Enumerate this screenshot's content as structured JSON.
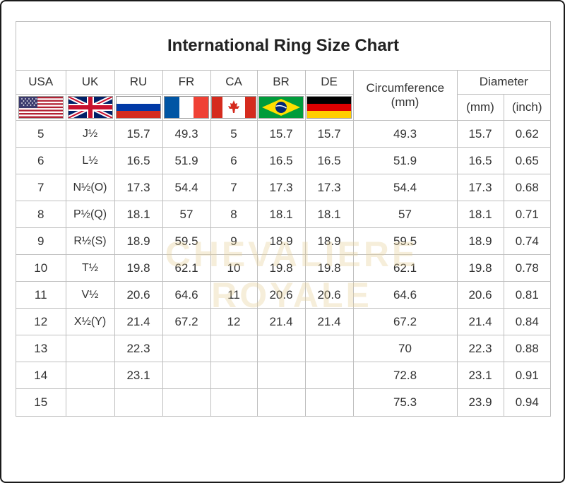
{
  "title": "International Ring Size Chart",
  "columns": {
    "usa": "USA",
    "uk": "UK",
    "ru": "RU",
    "fr": "FR",
    "ca": "CA",
    "br": "BR",
    "de": "DE",
    "circumference": "Circumference (mm)",
    "diameter": "Diameter",
    "diameter_mm": "(mm)",
    "diameter_inch": "(inch)"
  },
  "flags": [
    "us-flag-icon",
    "uk-flag-icon",
    "russia-flag-icon",
    "france-flag-icon",
    "canada-flag-icon",
    "brazil-flag-icon",
    "germany-flag-icon"
  ],
  "rows": [
    {
      "usa": "5",
      "uk": "J½",
      "ru": "15.7",
      "fr": "49.3",
      "ca": "5",
      "br": "15.7",
      "de": "15.7",
      "circ": "49.3",
      "dmm": "15.7",
      "din": "0.62"
    },
    {
      "usa": "6",
      "uk": "L½",
      "ru": "16.5",
      "fr": "51.9",
      "ca": "6",
      "br": "16.5",
      "de": "16.5",
      "circ": "51.9",
      "dmm": "16.5",
      "din": "0.65"
    },
    {
      "usa": "7",
      "uk": "N½(O)",
      "ru": "17.3",
      "fr": "54.4",
      "ca": "7",
      "br": "17.3",
      "de": "17.3",
      "circ": "54.4",
      "dmm": "17.3",
      "din": "0.68"
    },
    {
      "usa": "8",
      "uk": "P½(Q)",
      "ru": "18.1",
      "fr": "57",
      "ca": "8",
      "br": "18.1",
      "de": "18.1",
      "circ": "57",
      "dmm": "18.1",
      "din": "0.71"
    },
    {
      "usa": "9",
      "uk": "R½(S)",
      "ru": "18.9",
      "fr": "59.5",
      "ca": "9",
      "br": "18.9",
      "de": "18.9",
      "circ": "59.5",
      "dmm": "18.9",
      "din": "0.74"
    },
    {
      "usa": "10",
      "uk": "T½",
      "ru": "19.8",
      "fr": "62.1",
      "ca": "10",
      "br": "19.8",
      "de": "19.8",
      "circ": "62.1",
      "dmm": "19.8",
      "din": "0.78"
    },
    {
      "usa": "11",
      "uk": "V½",
      "ru": "20.6",
      "fr": "64.6",
      "ca": "11",
      "br": "20.6",
      "de": "20.6",
      "circ": "64.6",
      "dmm": "20.6",
      "din": "0.81"
    },
    {
      "usa": "12",
      "uk": "X½(Y)",
      "ru": "21.4",
      "fr": "67.2",
      "ca": "12",
      "br": "21.4",
      "de": "21.4",
      "circ": "67.2",
      "dmm": "21.4",
      "din": "0.84"
    },
    {
      "usa": "13",
      "uk": "",
      "ru": "22.3",
      "fr": "",
      "ca": "",
      "br": "",
      "de": "",
      "circ": "70",
      "dmm": "22.3",
      "din": "0.88"
    },
    {
      "usa": "14",
      "uk": "",
      "ru": "23.1",
      "fr": "",
      "ca": "",
      "br": "",
      "de": "",
      "circ": "72.8",
      "dmm": "23.1",
      "din": "0.91"
    },
    {
      "usa": "15",
      "uk": "",
      "ru": "",
      "fr": "",
      "ca": "",
      "br": "",
      "de": "",
      "circ": "75.3",
      "dmm": "23.9",
      "din": "0.94"
    }
  ],
  "watermark": "CHEVALIERE ROYALE"
}
